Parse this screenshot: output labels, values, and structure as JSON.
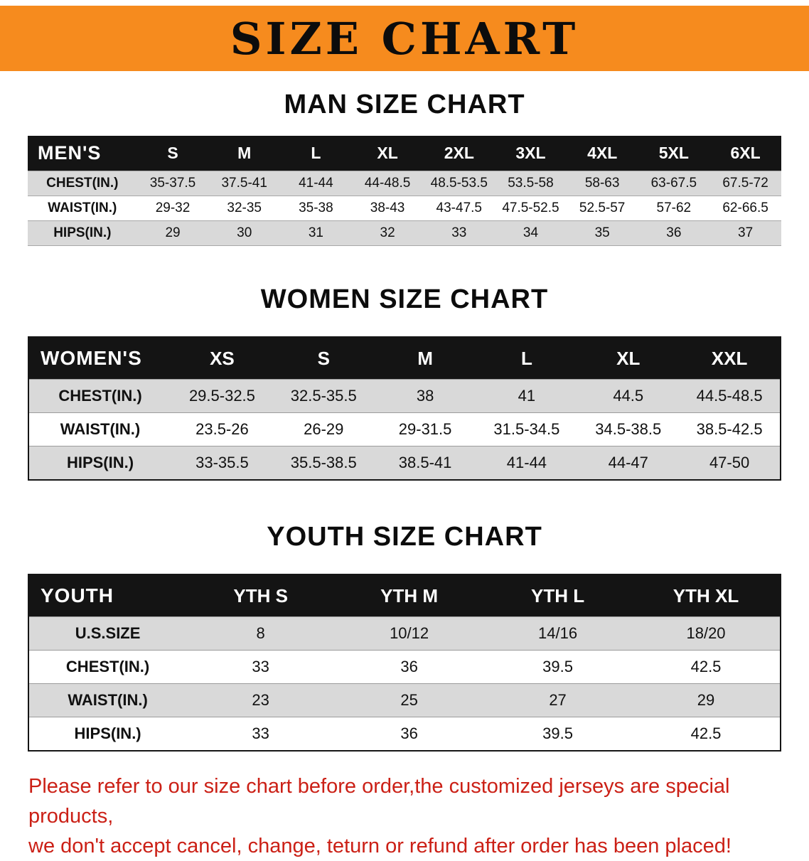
{
  "banner": {
    "title": "SIZE CHART",
    "bg_color": "#f68b1e",
    "text_color": "#0c0c0c"
  },
  "sections": [
    {
      "heading": "MAN SIZE CHART",
      "header": [
        "MEN'S",
        "S",
        "M",
        "L",
        "XL",
        "2XL",
        "3XL",
        "4XL",
        "5XL",
        "6XL"
      ],
      "rows": [
        [
          "CHEST(IN.)",
          "35-37.5",
          "37.5-41",
          "41-44",
          "44-48.5",
          "48.5-53.5",
          "53.5-58",
          "58-63",
          "63-67.5",
          "67.5-72"
        ],
        [
          "WAIST(IN.)",
          "29-32",
          "32-35",
          "35-38",
          "38-43",
          "43-47.5",
          "47.5-52.5",
          "52.5-57",
          "57-62",
          "62-66.5"
        ],
        [
          "HIPS(IN.)",
          "29",
          "30",
          "31",
          "32",
          "33",
          "34",
          "35",
          "36",
          "37"
        ]
      ]
    },
    {
      "heading": "WOMEN SIZE CHART",
      "header": [
        "WOMEN'S",
        "XS",
        "S",
        "M",
        "L",
        "XL",
        "XXL"
      ],
      "rows": [
        [
          "CHEST(IN.)",
          "29.5-32.5",
          "32.5-35.5",
          "38",
          "41",
          "44.5",
          "44.5-48.5"
        ],
        [
          "WAIST(IN.)",
          "23.5-26",
          "26-29",
          "29-31.5",
          "31.5-34.5",
          "34.5-38.5",
          "38.5-42.5"
        ],
        [
          "HIPS(IN.)",
          "33-35.5",
          "35.5-38.5",
          "38.5-41",
          "41-44",
          "44-47",
          "47-50"
        ]
      ]
    },
    {
      "heading": "YOUTH SIZE CHART",
      "header": [
        "YOUTH",
        "YTH S",
        "YTH M",
        "YTH L",
        "YTH XL"
      ],
      "rows": [
        [
          "U.S.SIZE",
          "8",
          "10/12",
          "14/16",
          "18/20"
        ],
        [
          "CHEST(IN.)",
          "33",
          "36",
          "39.5",
          "42.5"
        ],
        [
          "WAIST(IN.)",
          "23",
          "25",
          "27",
          "29"
        ],
        [
          "HIPS(IN.)",
          "33",
          "36",
          "39.5",
          "42.5"
        ]
      ]
    }
  ],
  "footer": {
    "line1": "Please refer to our size chart before order,the customized jerseys are special products,",
    "line2": "we don't accept cancel, change, teturn or refund after order has been placed!",
    "text_color": "#cb2016"
  },
  "colors": {
    "row_shade": "#d9d9d9",
    "table_header_bg": "#141414"
  }
}
